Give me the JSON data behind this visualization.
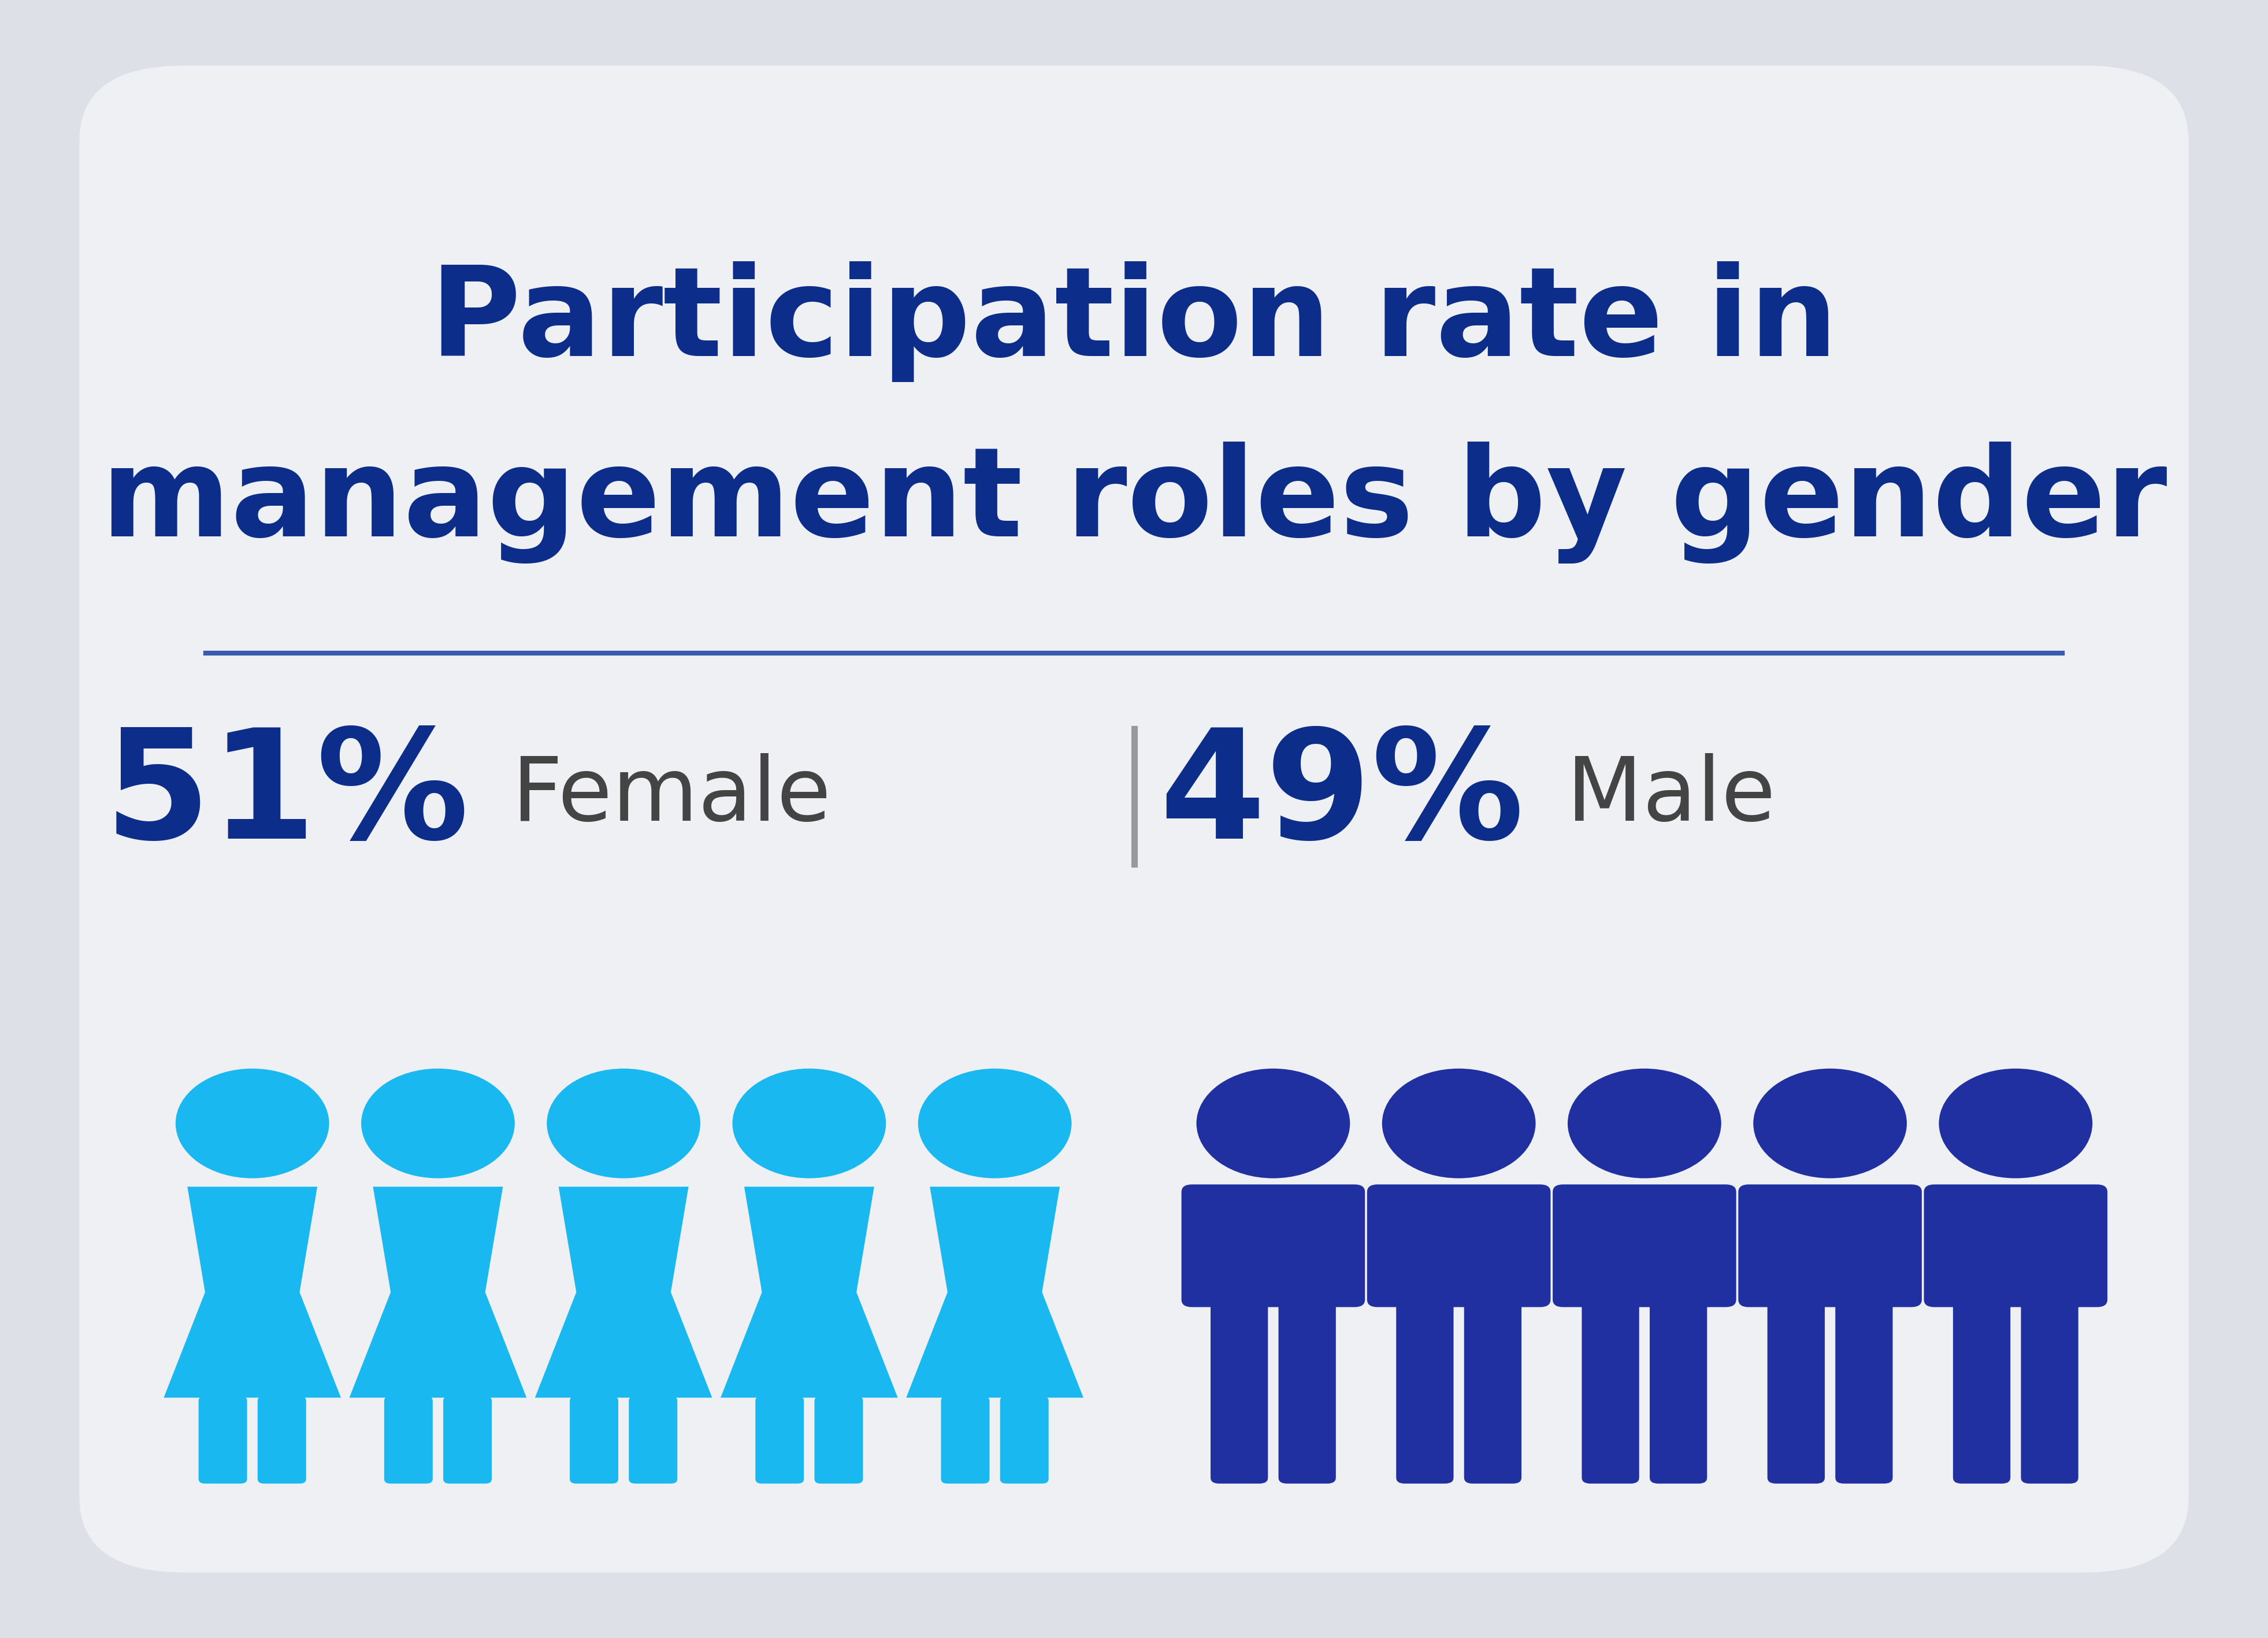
{
  "title_line1": "Participation rate in",
  "title_line2": "management roles by gender",
  "title_color": "#0d2d8a",
  "background_outer": "#dde0e6",
  "background_card": "#eef0f4",
  "divider_color": "#3a5ab0",
  "female_pct": "51%",
  "female_label": "Female",
  "male_pct": "49%",
  "male_label": "Male",
  "pct_color": "#0d2d8a",
  "label_color": "#444444",
  "female_icon_color": "#1ab8f0",
  "male_icon_color": "#2030a0",
  "n_female": 5,
  "n_male": 5,
  "sep_color": "#999999"
}
